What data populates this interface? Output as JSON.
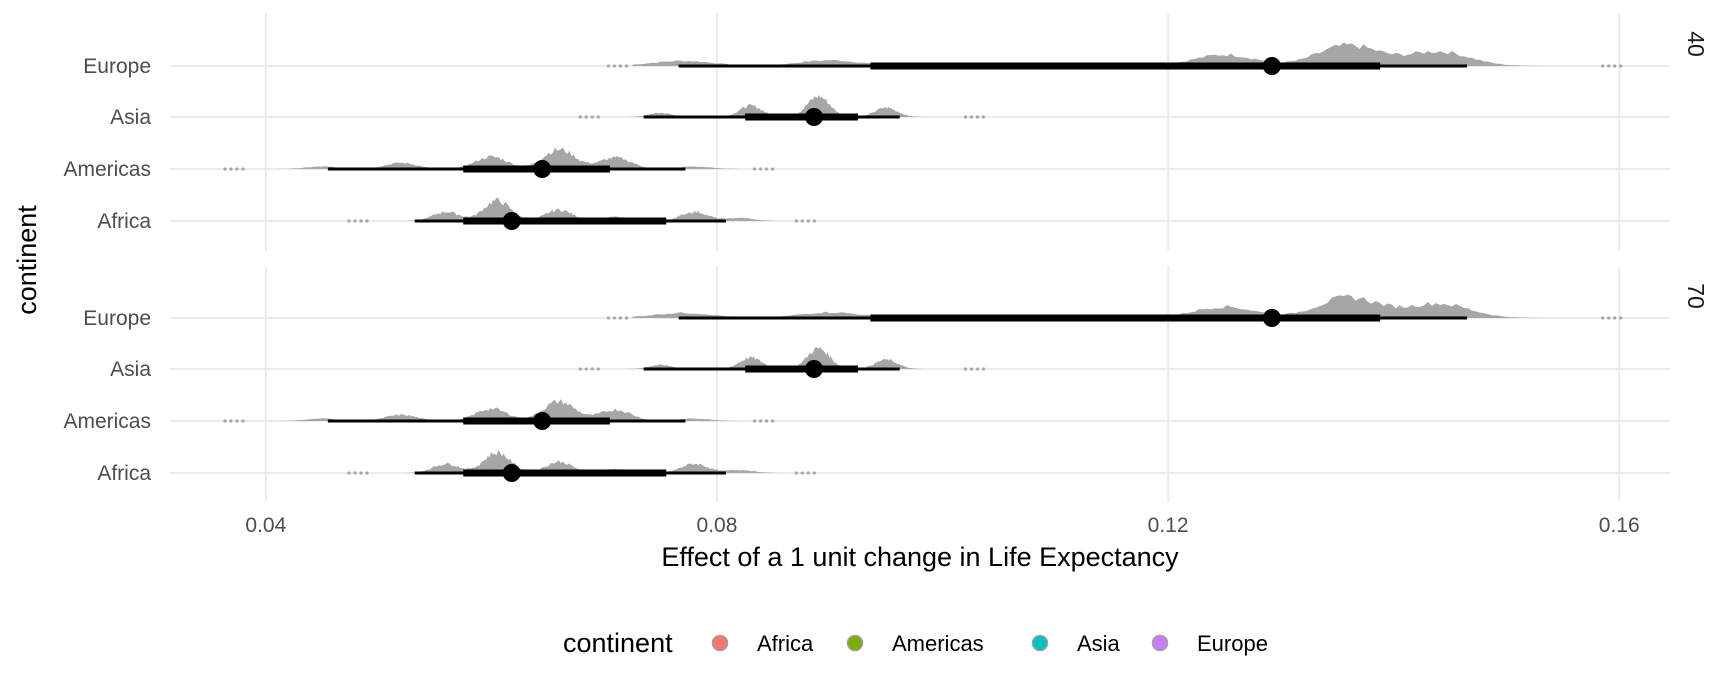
{
  "chart_data": {
    "type": "halfeye",
    "title": "",
    "xlabel": "Effect of a 1 unit change in Life Expectancy",
    "ylabel": "continent",
    "xlim": [
      0.0315,
      0.1645
    ],
    "x_ticks": [
      0.04,
      0.08,
      0.12,
      0.16
    ],
    "x_tick_labels": [
      "0.04",
      "0.08",
      "0.12",
      "0.16"
    ],
    "grid": true,
    "categories": [
      "Africa",
      "Americas",
      "Asia",
      "Europe"
    ],
    "facets": [
      {
        "label": "40",
        "rows": [
          {
            "category": "Europe",
            "point": 0.1292,
            "interval_66": [
              0.0936,
              0.1388
            ],
            "interval_95": [
              0.0766,
              0.1465
            ],
            "range": [
              0.0725,
              0.158
            ],
            "peaks": [
              [
                0.077,
                0.25
              ],
              [
                0.09,
                0.28
              ],
              [
                0.1,
                0.12
              ],
              [
                0.125,
                0.55
              ],
              [
                0.136,
                1.0
              ],
              [
                0.144,
                0.7
              ]
            ]
          },
          {
            "category": "Asia",
            "point": 0.0886,
            "interval_66": [
              0.0825,
              0.0925
            ],
            "interval_95": [
              0.0735,
              0.0962
            ],
            "range": [
              0.07,
              0.1015
            ],
            "peaks": [
              [
                0.075,
                0.2
              ],
              [
                0.083,
                0.55
              ],
              [
                0.089,
                1.0
              ],
              [
                0.095,
                0.45
              ]
            ]
          },
          {
            "category": "Americas",
            "point": 0.0645,
            "interval_66": [
              0.0575,
              0.0705
            ],
            "interval_95": [
              0.0455,
              0.0772
            ],
            "range": [
              0.0385,
              0.0828
            ],
            "peaks": [
              [
                0.045,
                0.12
              ],
              [
                0.052,
                0.3
              ],
              [
                0.06,
                0.6
              ],
              [
                0.066,
                0.95
              ],
              [
                0.071,
                0.55
              ],
              [
                0.078,
                0.12
              ]
            ]
          },
          {
            "category": "Africa",
            "point": 0.0618,
            "interval_66": [
              0.0575,
              0.0755
            ],
            "interval_95": [
              0.0532,
              0.0808
            ],
            "range": [
              0.0495,
              0.0865
            ],
            "peaks": [
              [
                0.056,
                0.45
              ],
              [
                0.0605,
                1.0
              ],
              [
                0.066,
                0.55
              ],
              [
                0.071,
                0.2
              ],
              [
                0.078,
                0.45
              ],
              [
                0.082,
                0.15
              ]
            ]
          }
        ]
      },
      {
        "label": "70",
        "rows": [
          {
            "category": "Europe",
            "point": 0.1292,
            "interval_66": [
              0.0936,
              0.1388
            ],
            "interval_95": [
              0.0766,
              0.1465
            ],
            "range": [
              0.0725,
              0.158
            ],
            "peaks": [
              [
                0.077,
                0.25
              ],
              [
                0.09,
                0.28
              ],
              [
                0.1,
                0.12
              ],
              [
                0.125,
                0.55
              ],
              [
                0.136,
                1.0
              ],
              [
                0.144,
                0.7
              ]
            ]
          },
          {
            "category": "Asia",
            "point": 0.0886,
            "interval_66": [
              0.0825,
              0.0925
            ],
            "interval_95": [
              0.0735,
              0.0962
            ],
            "range": [
              0.07,
              0.1015
            ],
            "peaks": [
              [
                0.075,
                0.2
              ],
              [
                0.083,
                0.55
              ],
              [
                0.089,
                1.0
              ],
              [
                0.095,
                0.45
              ]
            ]
          },
          {
            "category": "Americas",
            "point": 0.0645,
            "interval_66": [
              0.0575,
              0.0705
            ],
            "interval_95": [
              0.0455,
              0.0772
            ],
            "range": [
              0.0385,
              0.0828
            ],
            "peaks": [
              [
                0.045,
                0.12
              ],
              [
                0.052,
                0.3
              ],
              [
                0.06,
                0.6
              ],
              [
                0.066,
                0.95
              ],
              [
                0.071,
                0.55
              ],
              [
                0.078,
                0.12
              ]
            ]
          },
          {
            "category": "Africa",
            "point": 0.0618,
            "interval_66": [
              0.0575,
              0.0755
            ],
            "interval_95": [
              0.0532,
              0.0808
            ],
            "range": [
              0.0495,
              0.0865
            ],
            "peaks": [
              [
                0.056,
                0.45
              ],
              [
                0.0605,
                1.0
              ],
              [
                0.066,
                0.55
              ],
              [
                0.071,
                0.2
              ],
              [
                0.078,
                0.45
              ],
              [
                0.082,
                0.15
              ]
            ]
          }
        ]
      }
    ],
    "legend": {
      "title": "continent",
      "position": "bottom",
      "items": [
        {
          "label": "Africa",
          "color": "#F8766D"
        },
        {
          "label": "Americas",
          "color": "#7CAE00"
        },
        {
          "label": "Asia",
          "color": "#00BFC4"
        },
        {
          "label": "Europe",
          "color": "#C77CFF"
        }
      ]
    },
    "colors": {
      "density": "#a6a6a6",
      "interval": "#000000",
      "grid": "#ebebeb"
    }
  }
}
